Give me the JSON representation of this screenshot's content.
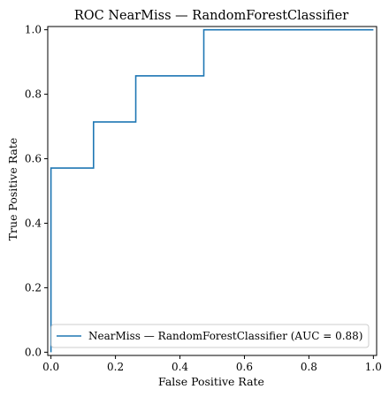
{
  "chart_data": {
    "type": "line",
    "title": "ROC NearMiss — RandomForestClassifier",
    "xlabel": "False Positive Rate",
    "ylabel": "True Positive Rate",
    "xlim": [
      -0.01,
      1.01
    ],
    "ylim": [
      -0.01,
      1.01
    ],
    "xticks": [
      0.0,
      0.2,
      0.4,
      0.6,
      0.8,
      1.0
    ],
    "yticks": [
      0.0,
      0.2,
      0.4,
      0.6,
      0.8,
      1.0
    ],
    "xtick_labels": [
      "0.0",
      "0.2",
      "0.4",
      "0.6",
      "0.8",
      "1.0"
    ],
    "ytick_labels": [
      "0.0",
      "0.2",
      "0.4",
      "0.6",
      "0.8",
      "1.0"
    ],
    "grid": false,
    "legend_position": "lower-right",
    "series": [
      {
        "name": "NearMiss — RandomForestClassifier (AUC = 0.88)",
        "color": "#1f77b4",
        "x": [
          0.0,
          0.0,
          0.0,
          0.132,
          0.132,
          0.263,
          0.263,
          0.474,
          0.474,
          1.0
        ],
        "y": [
          0.0,
          0.571,
          0.571,
          0.571,
          0.714,
          0.714,
          0.857,
          0.857,
          1.0,
          1.0
        ]
      }
    ]
  }
}
